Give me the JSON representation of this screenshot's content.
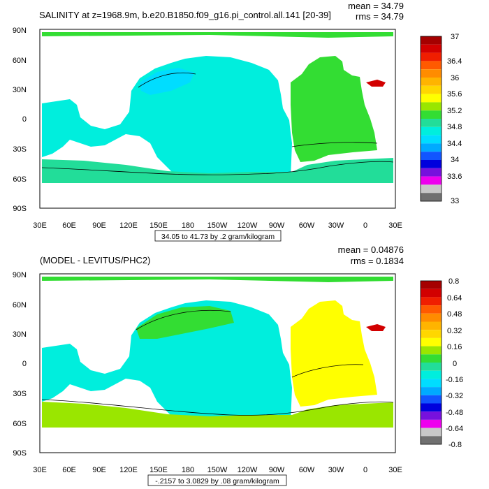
{
  "panels": [
    {
      "id": "salinity",
      "title": "SALINITY at z=1968.9m, b.e20.B1850.f09_g16.pi_control.all.141 [20-39]",
      "stats": {
        "mean": "mean = 34.79",
        "rms": "rms = 34.79"
      },
      "range_caption": "34.05 to 41.73 by .2 gram/kilogram",
      "lat_ticks": [
        "90N",
        "60N",
        "30N",
        "0",
        "30S",
        "60S",
        "90S"
      ],
      "lon_ticks": [
        "30E",
        "60E",
        "90E",
        "120E",
        "150E",
        "180",
        "150W",
        "120W",
        "90W",
        "60W",
        "30W",
        "0",
        "30E"
      ],
      "colorbar": {
        "labels": [
          "37",
          "36.4",
          "36",
          "35.6",
          "35.2",
          "34.8",
          "34.4",
          "34",
          "33.6",
          "33"
        ],
        "colors": [
          "#a50000",
          "#d20000",
          "#f01e00",
          "#ff5a00",
          "#ff8c00",
          "#ffb400",
          "#ffd700",
          "#ffff00",
          "#9ae600",
          "#33dd33",
          "#22dd99",
          "#00eedd",
          "#00ddff",
          "#00aaff",
          "#1155ff",
          "#0000dd",
          "#7711dd",
          "#ee00ee",
          "#c8c8c8",
          "#707070"
        ]
      },
      "regions": {
        "land_color": "#ffffff",
        "pacific_indian_color": "#00eedd",
        "atlantic_color": "#33dd33",
        "southern_ocean_color": "#22dd99",
        "arctic_color": "#33dd33",
        "north_pacific_low_color": "#00ddff",
        "mediterranean_color": "#d20000"
      }
    },
    {
      "id": "difference",
      "title": "(MODEL - LEVITUS/PHC2)",
      "stats": {
        "mean": "mean = 0.04876",
        "rms": "rms = 0.1834"
      },
      "range_caption": "-.2157 to 3.0829 by .08 gram/kilogram",
      "lat_ticks": [
        "90N",
        "60N",
        "30N",
        "0",
        "30S",
        "60S",
        "90S"
      ],
      "lon_ticks": [
        "30E",
        "60E",
        "90E",
        "120E",
        "150E",
        "180",
        "150W",
        "120W",
        "90W",
        "60W",
        "30W",
        "0",
        "30E"
      ],
      "colorbar": {
        "labels": [
          "0.8",
          "0.64",
          "0.48",
          "0.32",
          "0.16",
          "0",
          "-0.16",
          "-0.32",
          "-0.48",
          "-0.64",
          "-0.8"
        ],
        "colors": [
          "#a50000",
          "#d20000",
          "#f01e00",
          "#ff5a00",
          "#ff8c00",
          "#ffb400",
          "#ffd700",
          "#ffff00",
          "#9ae600",
          "#33dd33",
          "#22dd99",
          "#00eedd",
          "#00ddff",
          "#00aaff",
          "#1155ff",
          "#0000dd",
          "#7711dd",
          "#ee00ee",
          "#c8c8c8",
          "#707070"
        ]
      },
      "regions": {
        "land_color": "#ffffff",
        "pacific_indian_color": "#00eedd",
        "atlantic_color": "#ffff00",
        "southern_ocean_color": "#9ae600",
        "arctic_color": "#33dd33",
        "north_pacific_low_color": "#33dd33",
        "mediterranean_color": "#d20000"
      }
    }
  ]
}
